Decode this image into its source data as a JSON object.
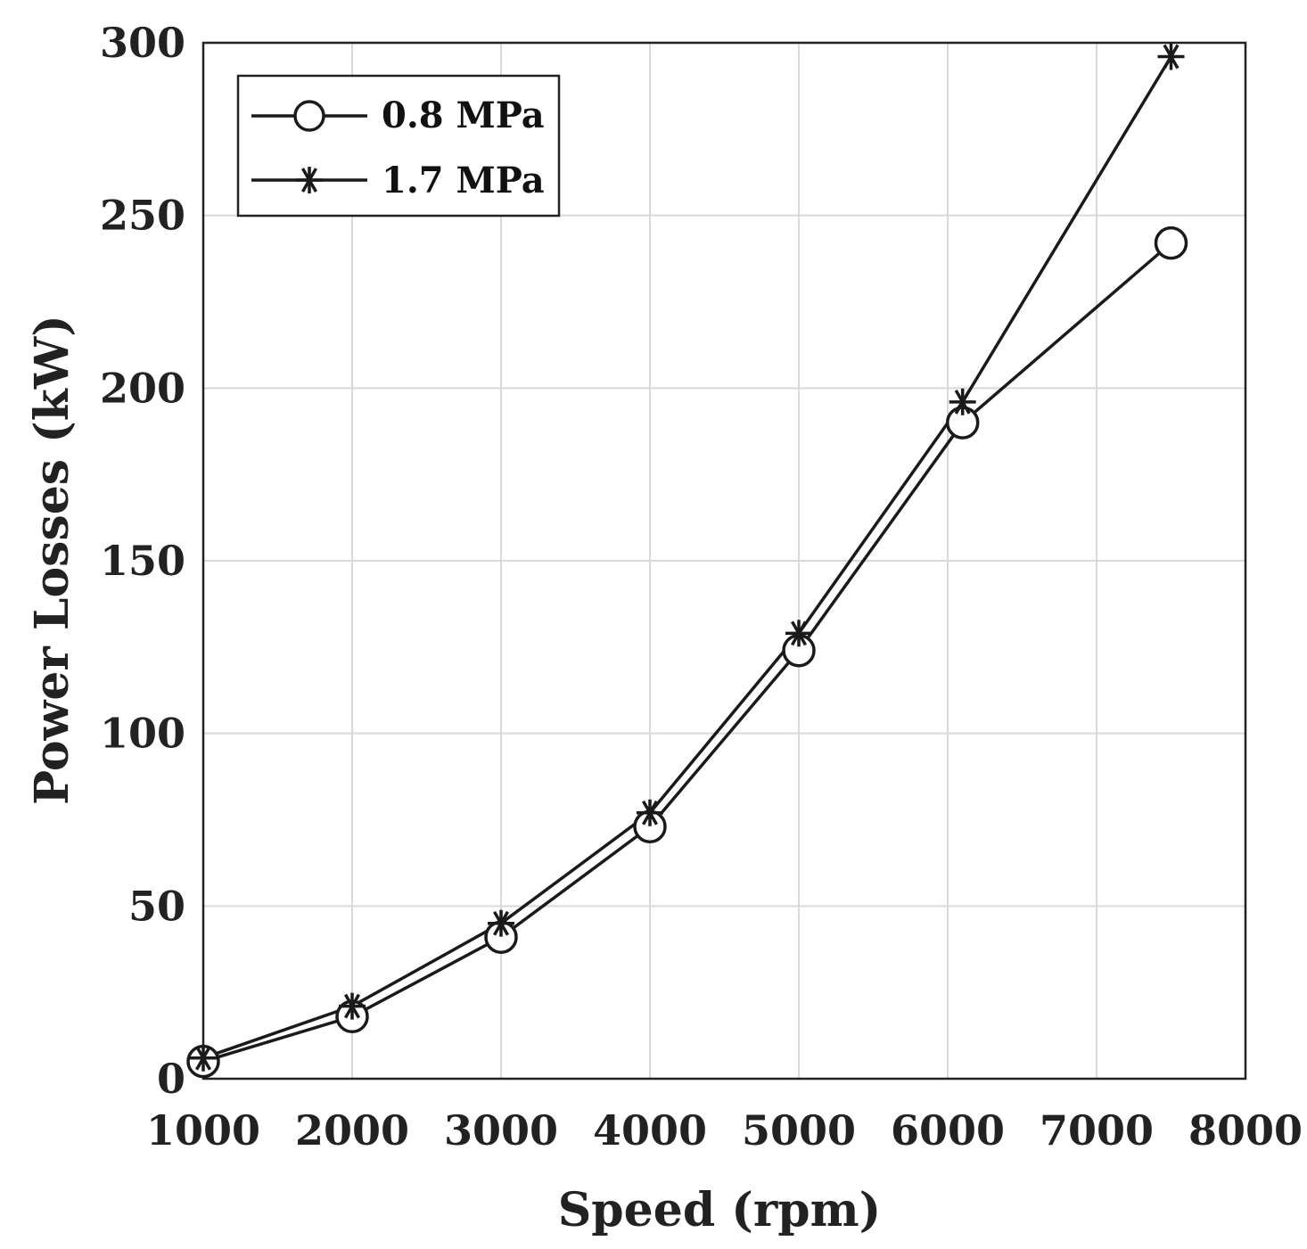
{
  "chart_data": {
    "type": "line",
    "title": "",
    "xlabel": "Speed (rpm)",
    "ylabel": "Power Losses (kW)",
    "xlim": [
      1000,
      8000
    ],
    "ylim": [
      0,
      300
    ],
    "xticks": [
      1000,
      2000,
      3000,
      4000,
      5000,
      6000,
      7000,
      8000
    ],
    "yticks": [
      0,
      50,
      100,
      150,
      200,
      250,
      300
    ],
    "grid": true,
    "legend_position": "top-left",
    "series": [
      {
        "name": "0.8 MPa",
        "marker": "circle",
        "x": [
          1000,
          2000,
          3000,
          4000,
          5000,
          6100,
          7500
        ],
        "y": [
          5,
          18,
          41,
          73,
          124,
          190,
          242
        ]
      },
      {
        "name": "1.7 MPa",
        "marker": "star",
        "x": [
          1000,
          2000,
          3000,
          4000,
          5000,
          6100,
          7500
        ],
        "y": [
          6,
          21,
          45,
          77,
          129,
          196,
          296
        ]
      }
    ]
  }
}
